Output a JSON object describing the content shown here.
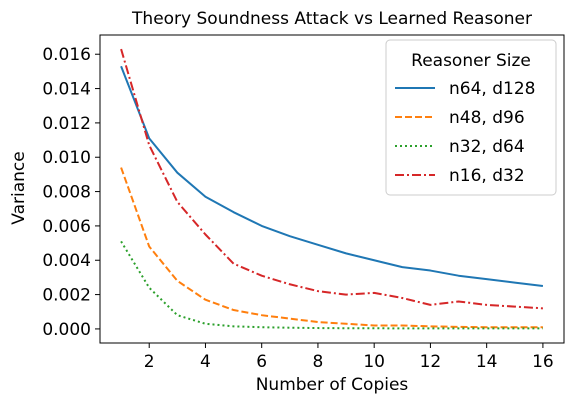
{
  "chart_data": {
    "type": "line",
    "title": "Theory Soundness Attack vs Learned Reasoner",
    "xlabel": "Number of Copies",
    "ylabel": "Variance",
    "xlim": [
      0.25,
      16.75
    ],
    "ylim": [
      -0.00082,
      0.01712
    ],
    "xticks": [
      2,
      4,
      6,
      8,
      10,
      12,
      14,
      16
    ],
    "xtick_labels": [
      "2",
      "4",
      "6",
      "8",
      "10",
      "12",
      "14",
      "16"
    ],
    "yticks": [
      0.0,
      0.002,
      0.004,
      0.006,
      0.008,
      0.01,
      0.012,
      0.014,
      0.016
    ],
    "ytick_labels": [
      "0.000",
      "0.002",
      "0.004",
      "0.006",
      "0.008",
      "0.010",
      "0.012",
      "0.014",
      "0.016"
    ],
    "grid": false,
    "legend": {
      "title": "Reasoner Size",
      "placement": "top-right"
    },
    "x": [
      1,
      2,
      3,
      4,
      5,
      6,
      7,
      8,
      9,
      10,
      11,
      12,
      13,
      14,
      15,
      16
    ],
    "series": [
      {
        "name": "n64, d128",
        "color": "#1f77b4",
        "style": "solid",
        "values": [
          0.0153,
          0.0111,
          0.0091,
          0.0077,
          0.0068,
          0.006,
          0.0054,
          0.0049,
          0.0044,
          0.004,
          0.0036,
          0.0034,
          0.0031,
          0.0029,
          0.0027,
          0.0025
        ]
      },
      {
        "name": "n48, d96",
        "color": "#ff7f0e",
        "style": "dashed",
        "values": [
          0.0094,
          0.0048,
          0.0028,
          0.0017,
          0.0011,
          0.0008,
          0.0006,
          0.0004,
          0.0003,
          0.0002,
          0.0002,
          0.00015,
          0.00012,
          0.0001,
          0.0001,
          0.0001
        ]
      },
      {
        "name": "n32, d64",
        "color": "#2ca02c",
        "style": "dotted",
        "values": [
          0.0051,
          0.0024,
          0.0008,
          0.0003,
          0.00015,
          0.0001,
          7e-05,
          5e-05,
          4e-05,
          4e-05,
          3e-05,
          3e-05,
          3e-05,
          3e-05,
          3e-05,
          3e-05
        ]
      },
      {
        "name": "n16, d32",
        "color": "#d62728",
        "style": "dashdot",
        "values": [
          0.0163,
          0.0107,
          0.0074,
          0.0055,
          0.0038,
          0.0031,
          0.0026,
          0.0022,
          0.002,
          0.0021,
          0.0018,
          0.0014,
          0.0016,
          0.0014,
          0.0013,
          0.0012
        ]
      }
    ]
  }
}
